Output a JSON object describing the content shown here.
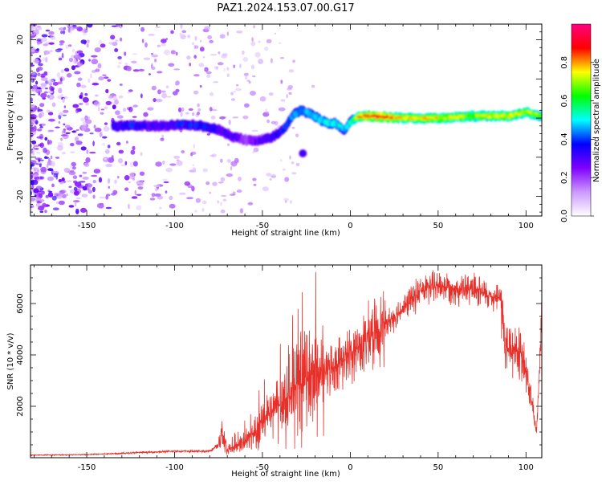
{
  "title": "PAZ1.2024.153.07.00.G17",
  "chart_data": [
    {
      "type": "heatmap",
      "xlabel": "Height of straight line (km)",
      "ylabel": "Frequency (Hz)",
      "xlim": [
        -182,
        109
      ],
      "ylim": [
        -25,
        24
      ],
      "xticks": [
        -150,
        -100,
        -50,
        0,
        50,
        100
      ],
      "yticks": [
        20,
        10,
        0,
        -10,
        -20
      ],
      "colorbar": {
        "label": "Normalized spectral amplitude",
        "range": [
          0,
          1
        ],
        "ticks": [
          0.0,
          0.2,
          0.4,
          0.6,
          0.8
        ],
        "colors": [
          "#ffffff",
          "#cc99ff",
          "#8000ff",
          "#0000ff",
          "#00ffff",
          "#00ff00",
          "#ffff00",
          "#ff0000",
          "#ff0080"
        ]
      },
      "ridge": {
        "x": [
          -135,
          -125,
          -115,
          -105,
          -95,
          -85,
          -75,
          -65,
          -55,
          -45,
          -38,
          -32,
          -28,
          -22,
          -15,
          -8,
          -3,
          0,
          5,
          15,
          30,
          50,
          70,
          90,
          100,
          109
        ],
        "y": [
          -2,
          -2,
          -2,
          -2,
          -1.5,
          -2,
          -3,
          -5,
          -6,
          -5,
          -3,
          1,
          2,
          1,
          -1,
          -1.5,
          -3,
          -1,
          0.5,
          0.5,
          0,
          0,
          0.5,
          0.5,
          1.5,
          0.5
        ],
        "amplitude": [
          0.35,
          0.35,
          0.3,
          0.3,
          0.35,
          0.35,
          0.3,
          0.25,
          0.25,
          0.3,
          0.35,
          0.45,
          0.45,
          0.45,
          0.5,
          0.5,
          0.45,
          0.5,
          0.8,
          0.9,
          0.75,
          0.75,
          0.7,
          0.75,
          0.7,
          0.65
        ]
      },
      "noise": {
        "density_region_x": [
          -182,
          -60
        ],
        "freq_range": [
          -24,
          24
        ]
      }
    },
    {
      "type": "line",
      "xlabel": "Height of straight line (km)",
      "ylabel": "SNR (10 * v/v)",
      "xlim": [
        -182,
        109
      ],
      "ylim": [
        0,
        7500
      ],
      "xticks": [
        -150,
        -100,
        -50,
        0,
        50,
        100
      ],
      "yticks": [
        2000,
        4000,
        6000
      ],
      "color": "#e8302a",
      "envelope": {
        "x": [
          -182,
          -150,
          -120,
          -100,
          -80,
          -75,
          -73,
          -70,
          -60,
          -50,
          -40,
          -30,
          -20,
          -10,
          0,
          10,
          20,
          30,
          40,
          50,
          60,
          70,
          80,
          86,
          88,
          95,
          100,
          103,
          106,
          109
        ],
        "y": [
          100,
          120,
          200,
          250,
          250,
          500,
          1100,
          300,
          600,
          1300,
          2100,
          2800,
          3200,
          3500,
          4000,
          4600,
          5200,
          5800,
          6500,
          6700,
          6600,
          6500,
          6300,
          6200,
          4300,
          4200,
          3400,
          2200,
          1000,
          5500
        ]
      }
    }
  ]
}
